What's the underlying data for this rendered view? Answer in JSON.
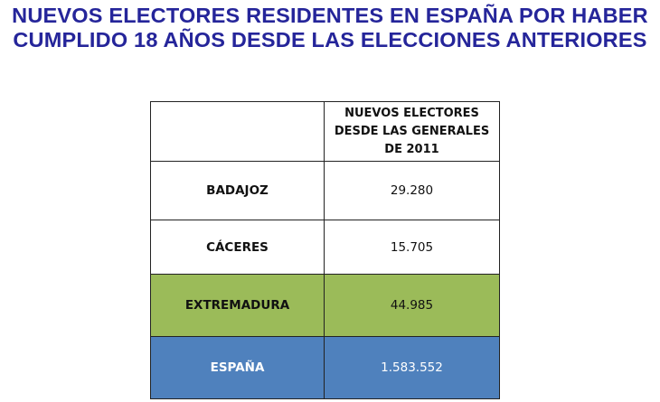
{
  "title": {
    "line1": "NUEVOS ELECTORES RESIDENTES EN ESPAÑA POR HABER",
    "line2": "CUMPLIDO 18 AÑOS DESDE LAS ELECCIONES ANTERIORES"
  },
  "table": {
    "header": {
      "col1": "",
      "col2_lines": [
        "NUEVOS ELECTORES",
        "DESDE LAS GENERALES",
        "DE 2011"
      ]
    },
    "rows": [
      {
        "label": "BADAJOZ",
        "value": "29.280",
        "color": "#ffffff"
      },
      {
        "label": "CÁCERES",
        "value": "15.705",
        "color": "#ffffff"
      },
      {
        "label": "EXTREMADURA",
        "value": "44.985",
        "color": "#9bbb59"
      },
      {
        "label": "ESPAÑA",
        "value": "1.583.552",
        "color": "#4f81bd"
      }
    ]
  },
  "colors": {
    "title": "#25259a"
  }
}
